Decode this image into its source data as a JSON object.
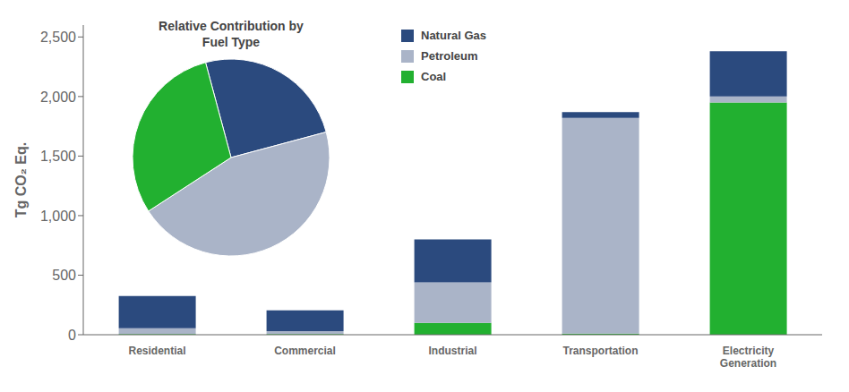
{
  "chart_data": [
    {
      "type": "bar",
      "stacked": true,
      "categories": [
        "Residential",
        "Commercial",
        "Industrial",
        "Transportation",
        "Electricity\nGeneration"
      ],
      "series": [
        {
          "name": "Natural Gas",
          "color": "#2b4a7e",
          "values": [
            270,
            175,
            360,
            50,
            380
          ]
        },
        {
          "name": "Petroleum",
          "color": "#aab4c8",
          "values": [
            50,
            25,
            340,
            1810,
            50
          ]
        },
        {
          "name": "Coal",
          "color": "#22b030",
          "values": [
            5,
            5,
            100,
            10,
            1950
          ]
        }
      ],
      "ylabel": "Tg CO₂ Eq.",
      "ylim": [
        0,
        2600
      ],
      "yticks": [
        0,
        500,
        {
          "value": 1000,
          "label": "1,000"
        },
        {
          "value": 1500,
          "label": "1,500"
        },
        {
          "value": 2000,
          "label": "2,000"
        },
        {
          "value": 2500,
          "label": "2,500"
        }
      ],
      "legend": "upper center",
      "grid": false
    },
    {
      "type": "pie",
      "title": "Relative Contribution by\nFuel Type",
      "values": [
        25,
        45,
        30
      ],
      "colors": [
        "#2b4a7e",
        "#aab4c8",
        "#22b030"
      ]
    }
  ]
}
